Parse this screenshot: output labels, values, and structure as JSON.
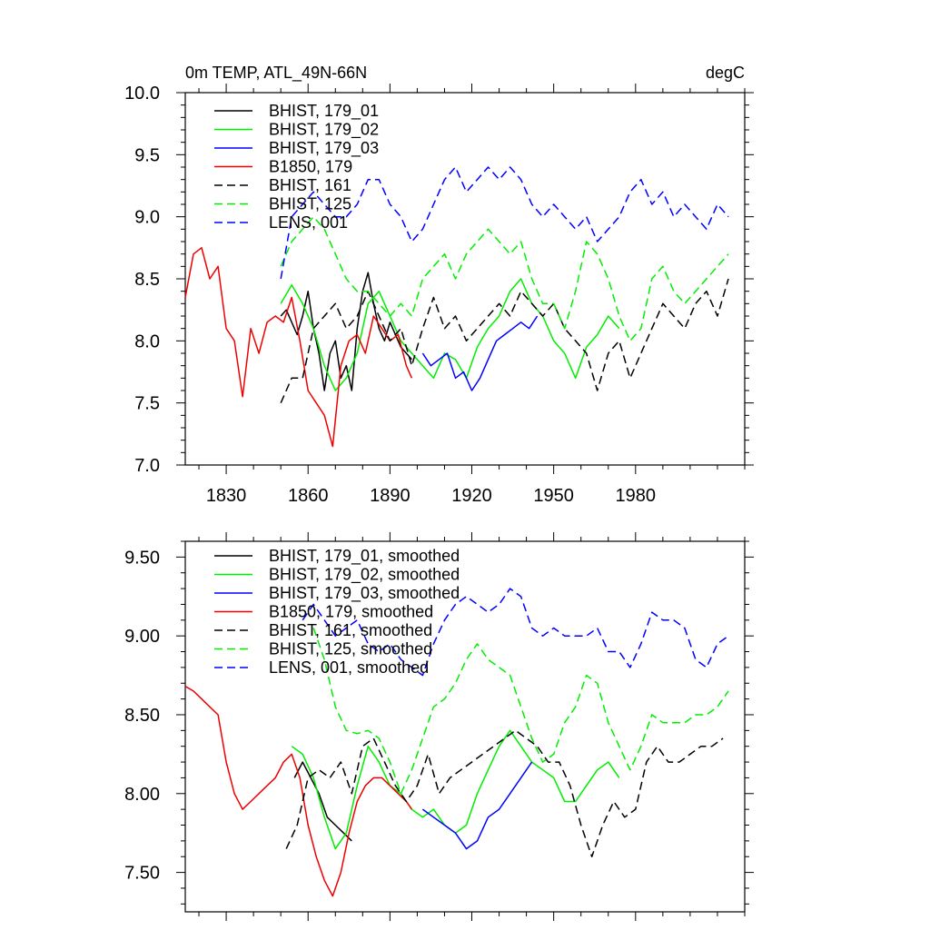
{
  "chart_data": [
    {
      "type": "line",
      "title": "0m TEMP, ATL_49N-66N",
      "units": "degC",
      "xlim": [
        1815,
        2020
      ],
      "ylim": [
        7.0,
        10.0
      ],
      "x_ticks": [
        1830,
        1860,
        1890,
        1920,
        1950,
        1980
      ],
      "y_ticks": [
        7.0,
        7.5,
        8.0,
        8.5,
        9.0,
        9.5,
        10.0
      ],
      "y_tick_labels": [
        "7.0",
        "7.5",
        "8.0",
        "8.5",
        "9.0",
        "9.5",
        "10.0"
      ],
      "grid": false,
      "legend_position": "top-left",
      "series": [
        {
          "name": "BHIST, 179_01",
          "color": "#000000",
          "dash": "solid",
          "x": [
            1850,
            1852,
            1854,
            1856,
            1858,
            1860,
            1862,
            1864,
            1866,
            1868,
            1870,
            1872,
            1874,
            1876,
            1878,
            1880,
            1882,
            1884,
            1886,
            1888,
            1890,
            1892,
            1894,
            1896,
            1898
          ],
          "y": [
            8.2,
            8.25,
            8.15,
            8.05,
            8.2,
            8.4,
            8.1,
            7.9,
            7.6,
            7.9,
            8.0,
            7.7,
            7.8,
            7.6,
            8.1,
            8.4,
            8.55,
            8.3,
            8.1,
            8.0,
            8.15,
            8.05,
            7.95,
            7.9,
            7.85
          ]
        },
        {
          "name": "BHIST, 179_02",
          "color": "#00ee00",
          "dash": "solid",
          "x": [
            1850,
            1854,
            1858,
            1862,
            1866,
            1870,
            1874,
            1878,
            1882,
            1886,
            1890,
            1894,
            1898,
            1902,
            1906,
            1910,
            1914,
            1918,
            1922,
            1926,
            1930,
            1934,
            1938,
            1942,
            1946,
            1950,
            1954,
            1958,
            1962,
            1966,
            1970,
            1974
          ],
          "y": [
            8.3,
            8.45,
            8.3,
            8.1,
            7.8,
            7.6,
            7.7,
            7.9,
            8.3,
            8.4,
            8.2,
            8.0,
            7.9,
            7.8,
            7.7,
            7.9,
            7.85,
            7.7,
            7.95,
            8.1,
            8.2,
            8.4,
            8.5,
            8.3,
            8.2,
            8.0,
            7.9,
            7.7,
            7.95,
            8.05,
            8.2,
            8.1
          ]
        },
        {
          "name": "BHIST, 179_03",
          "color": "#0000ff",
          "dash": "solid",
          "x": [
            1902,
            1905,
            1908,
            1911,
            1914,
            1917,
            1920,
            1923,
            1926,
            1929,
            1932,
            1935,
            1938,
            1941,
            1944
          ],
          "y": [
            7.9,
            7.8,
            7.85,
            7.9,
            7.7,
            7.75,
            7.6,
            7.7,
            7.85,
            8.0,
            8.05,
            8.1,
            8.15,
            8.1,
            8.2
          ]
        },
        {
          "name": "B1850, 179",
          "color": "#ee0000",
          "dash": "solid",
          "x": [
            1815,
            1818,
            1821,
            1824,
            1827,
            1830,
            1833,
            1836,
            1839,
            1842,
            1845,
            1848,
            1851,
            1854,
            1857,
            1860,
            1863,
            1866,
            1869,
            1872,
            1875,
            1878,
            1881,
            1884,
            1887,
            1890,
            1893,
            1896,
            1898
          ],
          "y": [
            8.35,
            8.7,
            8.75,
            8.5,
            8.6,
            8.1,
            8.0,
            7.55,
            8.1,
            7.9,
            8.15,
            8.2,
            8.15,
            8.35,
            8.0,
            7.6,
            7.5,
            7.4,
            7.15,
            7.8,
            8.0,
            8.05,
            7.9,
            8.2,
            8.1,
            8.0,
            8.05,
            7.8,
            7.7
          ]
        },
        {
          "name": "BHIST, 161",
          "color": "#000000",
          "dash": "dash",
          "x": [
            1850,
            1854,
            1858,
            1862,
            1866,
            1870,
            1874,
            1878,
            1882,
            1886,
            1890,
            1894,
            1898,
            1902,
            1906,
            1910,
            1914,
            1918,
            1922,
            1926,
            1930,
            1934,
            1938,
            1942,
            1946,
            1950,
            1954,
            1958,
            1962,
            1966,
            1970,
            1974,
            1978,
            1982,
            1986,
            1990,
            1994,
            1998,
            2002,
            2006,
            2010,
            2014
          ],
          "y": [
            7.5,
            7.7,
            7.7,
            8.1,
            8.2,
            8.3,
            8.1,
            8.2,
            8.4,
            8.2,
            8.0,
            8.1,
            7.8,
            8.1,
            8.35,
            8.1,
            8.2,
            8.0,
            8.1,
            8.2,
            8.3,
            8.2,
            8.4,
            8.3,
            8.2,
            8.3,
            8.1,
            8.0,
            7.9,
            7.6,
            7.9,
            8.0,
            7.7,
            7.9,
            8.1,
            8.3,
            8.2,
            8.1,
            8.3,
            8.4,
            8.2,
            8.5
          ]
        },
        {
          "name": "BHIST, 125",
          "color": "#00ee00",
          "dash": "dash",
          "x": [
            1850,
            1854,
            1858,
            1862,
            1866,
            1870,
            1874,
            1878,
            1882,
            1886,
            1890,
            1894,
            1898,
            1902,
            1906,
            1910,
            1914,
            1918,
            1922,
            1926,
            1930,
            1934,
            1938,
            1942,
            1946,
            1950,
            1954,
            1958,
            1962,
            1966,
            1970,
            1974,
            1978,
            1982,
            1986,
            1990,
            1994,
            1998,
            2002,
            2006,
            2010,
            2014
          ],
          "y": [
            8.6,
            8.8,
            8.9,
            9.0,
            8.9,
            8.7,
            8.5,
            8.4,
            8.4,
            8.3,
            8.2,
            8.3,
            8.2,
            8.5,
            8.6,
            8.7,
            8.5,
            8.7,
            8.8,
            8.9,
            8.8,
            8.7,
            8.8,
            8.5,
            8.3,
            8.3,
            8.1,
            8.4,
            8.8,
            8.7,
            8.5,
            8.2,
            8.0,
            8.1,
            8.5,
            8.6,
            8.4,
            8.3,
            8.4,
            8.5,
            8.6,
            8.7
          ]
        },
        {
          "name": "LENS, 001",
          "color": "#0000ff",
          "dash": "dash",
          "x": [
            1850,
            1854,
            1858,
            1862,
            1866,
            1870,
            1874,
            1878,
            1882,
            1886,
            1890,
            1894,
            1898,
            1902,
            1906,
            1910,
            1914,
            1918,
            1922,
            1926,
            1930,
            1934,
            1938,
            1942,
            1946,
            1950,
            1954,
            1958,
            1962,
            1966,
            1970,
            1974,
            1978,
            1982,
            1986,
            1990,
            1994,
            1998,
            2002,
            2006,
            2010,
            2014
          ],
          "y": [
            8.5,
            9.0,
            9.1,
            9.2,
            9.1,
            9.0,
            9.0,
            9.1,
            9.3,
            9.3,
            9.1,
            9.0,
            8.8,
            8.9,
            9.1,
            9.3,
            9.4,
            9.2,
            9.3,
            9.4,
            9.3,
            9.4,
            9.3,
            9.1,
            9.0,
            9.1,
            9.0,
            8.9,
            9.0,
            8.8,
            8.9,
            9.0,
            9.2,
            9.3,
            9.1,
            9.2,
            9.0,
            9.1,
            9.0,
            8.9,
            9.1,
            9.0
          ]
        }
      ]
    },
    {
      "type": "line",
      "xlim": [
        1815,
        2020
      ],
      "ylim": [
        7.25,
        9.6
      ],
      "x_ticks": [
        1830,
        1860,
        1890,
        1920,
        1950,
        1980
      ],
      "y_ticks": [
        7.5,
        8.0,
        8.5,
        9.0,
        9.5
      ],
      "y_tick_labels": [
        "7.50",
        "8.00",
        "8.50",
        "9.00",
        "9.50"
      ],
      "grid": false,
      "legend_position": "top-left",
      "series": [
        {
          "name": "BHIST, 179_01, smoothed",
          "color": "#000000",
          "dash": "solid",
          "x": [
            1855,
            1858,
            1861,
            1864,
            1867,
            1870,
            1873,
            1876
          ],
          "y": [
            8.1,
            8.2,
            8.1,
            8.0,
            7.85,
            7.8,
            7.75,
            7.7
          ]
        },
        {
          "name": "BHIST, 179_02, smoothed",
          "color": "#00ee00",
          "dash": "solid",
          "x": [
            1854,
            1858,
            1862,
            1866,
            1870,
            1874,
            1878,
            1882,
            1886,
            1890,
            1894,
            1898,
            1902,
            1906,
            1910,
            1914,
            1918,
            1922,
            1926,
            1930,
            1934,
            1938,
            1942,
            1946,
            1950,
            1954,
            1958,
            1962,
            1966,
            1970,
            1974
          ],
          "y": [
            8.3,
            8.25,
            8.1,
            7.85,
            7.65,
            7.75,
            8.05,
            8.3,
            8.2,
            8.05,
            8.0,
            7.9,
            7.85,
            7.9,
            7.8,
            7.75,
            7.8,
            8.0,
            8.15,
            8.3,
            8.4,
            8.3,
            8.2,
            8.15,
            8.1,
            7.95,
            7.95,
            8.05,
            8.15,
            8.2,
            8.1
          ]
        },
        {
          "name": "BHIST, 179_03, smoothed",
          "color": "#0000ff",
          "dash": "solid",
          "x": [
            1902,
            1906,
            1910,
            1914,
            1918,
            1922,
            1926,
            1930,
            1934,
            1938,
            1942
          ],
          "y": [
            7.9,
            7.85,
            7.8,
            7.75,
            7.65,
            7.7,
            7.85,
            7.9,
            8.0,
            8.1,
            8.2
          ]
        },
        {
          "name": "B1850, 179, smoothed",
          "color": "#ee0000",
          "dash": "solid",
          "x": [
            1815,
            1818,
            1821,
            1824,
            1827,
            1830,
            1833,
            1836,
            1839,
            1842,
            1845,
            1848,
            1851,
            1854,
            1857,
            1860,
            1863,
            1866,
            1869,
            1872,
            1875,
            1878,
            1881,
            1884,
            1887,
            1890,
            1893,
            1896,
            1898
          ],
          "y": [
            8.68,
            8.65,
            8.6,
            8.55,
            8.5,
            8.2,
            8.0,
            7.9,
            7.95,
            8.0,
            8.05,
            8.1,
            8.2,
            8.25,
            8.1,
            7.8,
            7.6,
            7.45,
            7.35,
            7.5,
            7.75,
            7.95,
            8.05,
            8.1,
            8.1,
            8.05,
            8.0,
            7.95,
            7.9
          ]
        },
        {
          "name": "BHIST, 161, smoothed",
          "color": "#000000",
          "dash": "dash",
          "x": [
            1852,
            1856,
            1860,
            1864,
            1868,
            1872,
            1876,
            1880,
            1884,
            1888,
            1892,
            1896,
            1900,
            1904,
            1908,
            1912,
            1916,
            1920,
            1924,
            1928,
            1932,
            1936,
            1940,
            1944,
            1948,
            1952,
            1956,
            1960,
            1964,
            1968,
            1972,
            1976,
            1980,
            1984,
            1988,
            1992,
            1996,
            2000,
            2004,
            2008,
            2012
          ],
          "y": [
            7.65,
            7.8,
            8.1,
            8.15,
            8.1,
            8.2,
            8.0,
            8.3,
            8.35,
            8.2,
            8.05,
            7.95,
            8.05,
            8.25,
            8.0,
            8.1,
            8.15,
            8.2,
            8.25,
            8.3,
            8.35,
            8.4,
            8.35,
            8.3,
            8.2,
            8.2,
            8.05,
            7.8,
            7.6,
            7.8,
            7.95,
            7.85,
            7.9,
            8.2,
            8.3,
            8.2,
            8.2,
            8.25,
            8.3,
            8.3,
            8.35
          ]
        },
        {
          "name": "BHIST, 125, smoothed",
          "color": "#00ee00",
          "dash": "dash",
          "x": [
            1862,
            1866,
            1870,
            1874,
            1878,
            1882,
            1886,
            1890,
            1894,
            1898,
            1902,
            1906,
            1910,
            1914,
            1918,
            1922,
            1926,
            1930,
            1934,
            1938,
            1942,
            1946,
            1950,
            1954,
            1958,
            1962,
            1966,
            1970,
            1974,
            1978,
            1982,
            1986,
            1990,
            1994,
            1998,
            2002,
            2006,
            2010,
            2014
          ],
          "y": [
            9.05,
            8.85,
            8.55,
            8.4,
            8.38,
            8.4,
            8.35,
            8.2,
            8.0,
            8.15,
            8.35,
            8.55,
            8.6,
            8.7,
            8.85,
            8.95,
            8.85,
            8.8,
            8.75,
            8.55,
            8.35,
            8.2,
            8.25,
            8.45,
            8.55,
            8.75,
            8.7,
            8.45,
            8.3,
            8.15,
            8.3,
            8.5,
            8.45,
            8.45,
            8.45,
            8.5,
            8.5,
            8.55,
            8.65
          ]
        },
        {
          "name": "LENS, 001, smoothed",
          "color": "#0000ff",
          "dash": "dash",
          "x": [
            1858,
            1862,
            1866,
            1870,
            1874,
            1878,
            1882,
            1886,
            1890,
            1894,
            1898,
            1902,
            1906,
            1910,
            1914,
            1918,
            1922,
            1926,
            1930,
            1934,
            1938,
            1942,
            1946,
            1950,
            1954,
            1958,
            1962,
            1966,
            1970,
            1974,
            1978,
            1982,
            1986,
            1990,
            1994,
            1998,
            2002,
            2006,
            2010,
            2014
          ],
          "y": [
            9.1,
            9.2,
            9.1,
            9.0,
            9.05,
            9.1,
            8.95,
            8.9,
            8.95,
            8.85,
            8.8,
            8.75,
            8.95,
            9.1,
            9.2,
            9.25,
            9.2,
            9.15,
            9.2,
            9.3,
            9.25,
            9.05,
            9.0,
            9.05,
            9.0,
            9.0,
            9.0,
            9.05,
            8.9,
            8.9,
            8.8,
            8.95,
            9.15,
            9.1,
            9.1,
            9.05,
            8.85,
            8.8,
            8.95,
            9.0
          ]
        }
      ]
    }
  ]
}
